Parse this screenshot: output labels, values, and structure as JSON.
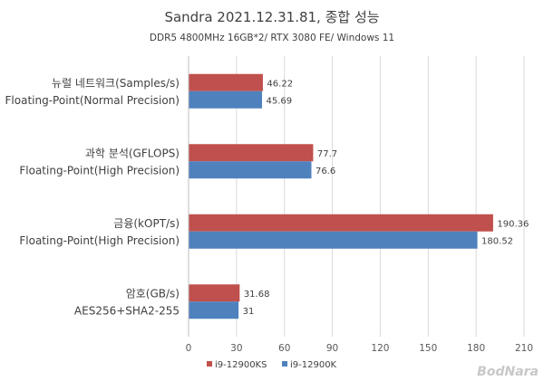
{
  "chart_data": {
    "type": "bar",
    "orientation": "horizontal",
    "title": "Sandra 2021.12.31.81, 종합 성능",
    "subtitle": "DDR5 4800MHz 16GB*2/ RTX 3080 FE/ Windows 11",
    "categories": [
      {
        "line1": "뉴럴 네트워크(Samples/s)",
        "line2": "Floating-Point(Normal Precision)"
      },
      {
        "line1": "과학 분석(GFLOPS)",
        "line2": "Floating-Point(High Precision)"
      },
      {
        "line1": "금융(kOPT/s)",
        "line2": "Floating-Point(High Precision)"
      },
      {
        "line1": "암호(GB/s)",
        "line2": "AES256+SHA2-255"
      }
    ],
    "series": [
      {
        "name": "i9-12900KS",
        "color": "#c0504d",
        "values": [
          46.22,
          77.7,
          190.36,
          31.68
        ],
        "labels": [
          "46.22",
          "77.7",
          "190.36",
          "31.68"
        ]
      },
      {
        "name": "i9-12900K",
        "color": "#4f81bd",
        "values": [
          45.69,
          76.6,
          180.52,
          31
        ],
        "labels": [
          "45.69",
          "76.6",
          "180.52",
          "31"
        ]
      }
    ],
    "xlim": [
      0,
      210
    ],
    "xticks": [
      "0",
      "30",
      "60",
      "90",
      "120",
      "150",
      "180",
      "210"
    ],
    "grid": true,
    "legend_position": "bottom"
  },
  "watermark": "BodNara",
  "colors": {
    "gridline": "#d9d9d9",
    "axis": "#bfbfbf"
  }
}
